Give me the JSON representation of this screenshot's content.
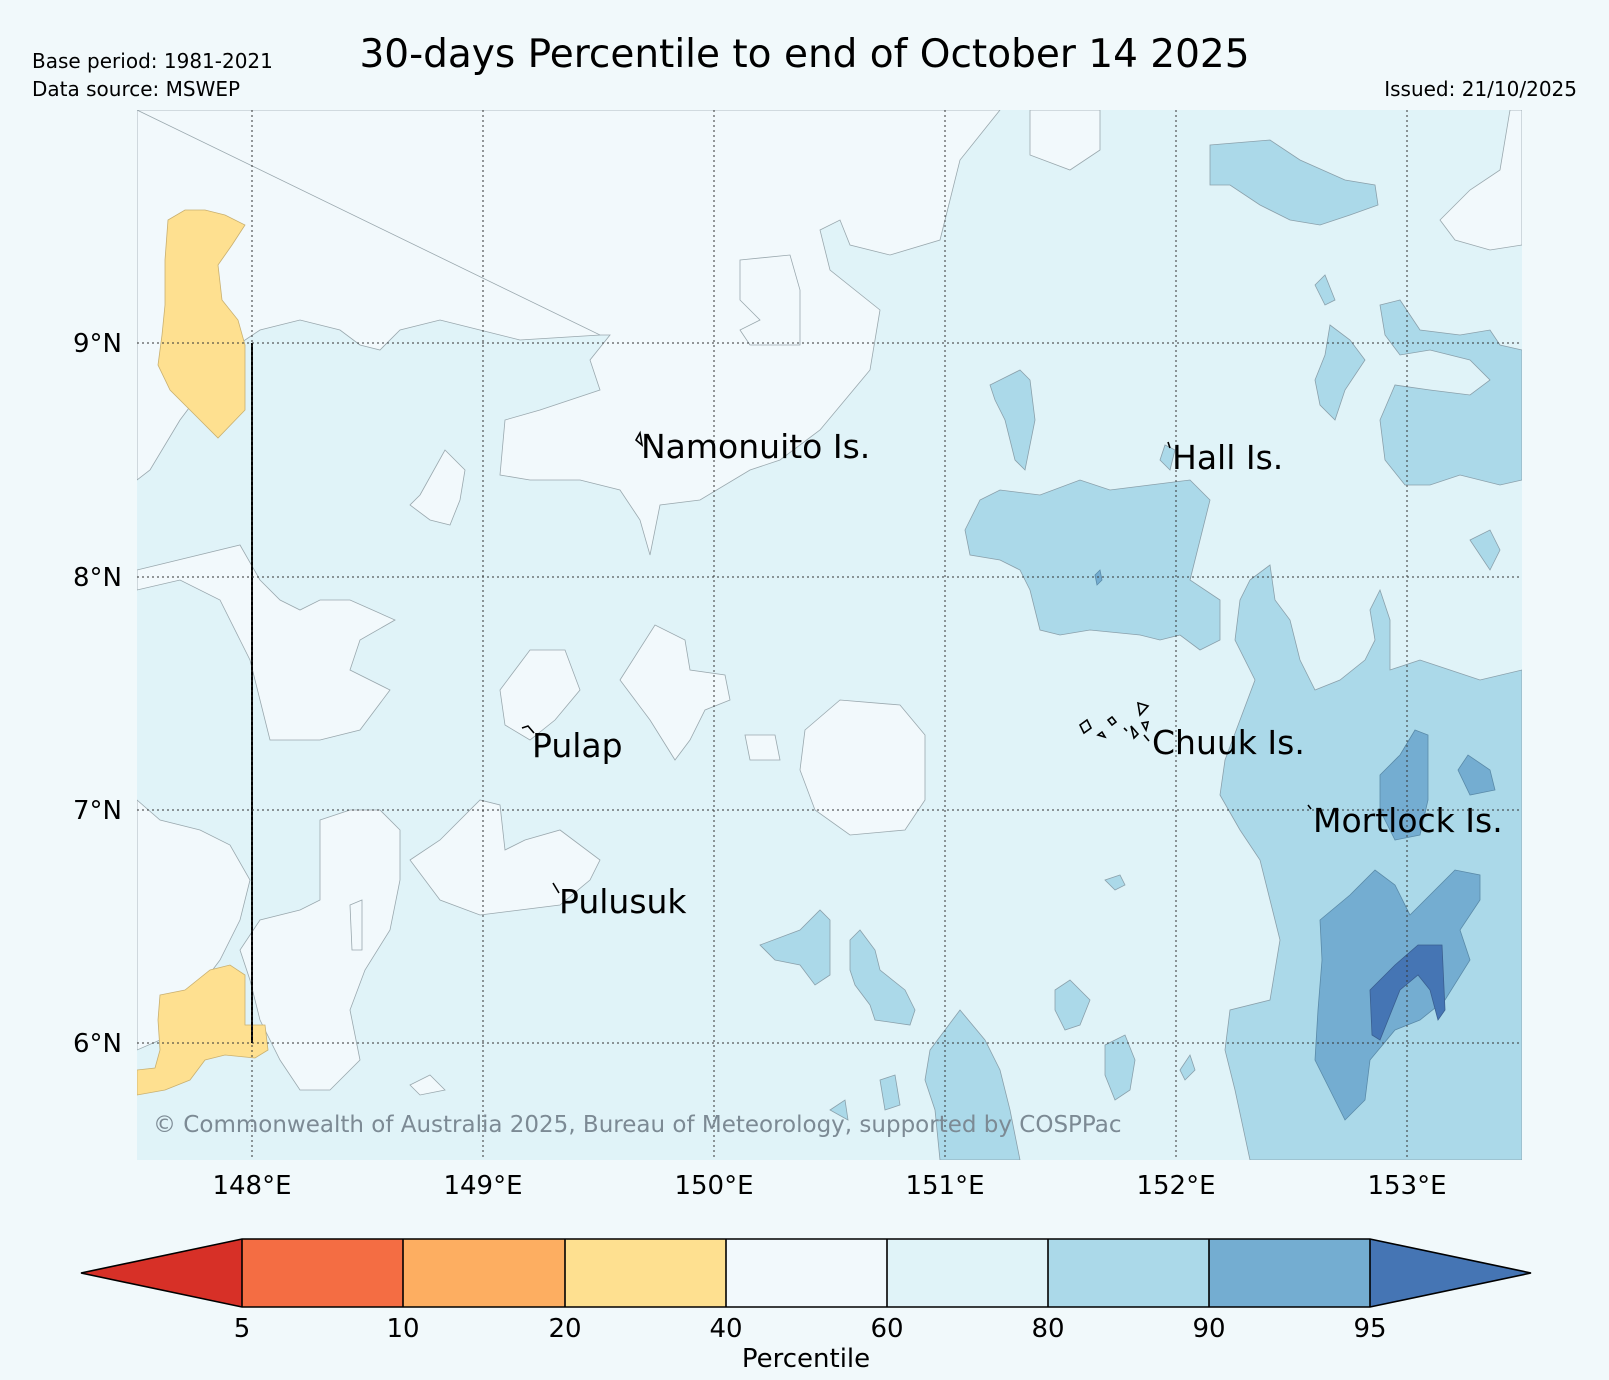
{
  "header": {
    "title": "30-days Percentile to end of October 14 2025",
    "base_period": "Base period: 1981-2021",
    "data_source": "Data source: MSWEP",
    "issued": "Issued: 21/10/2025"
  },
  "map": {
    "lat_labels": [
      "9°N",
      "8°N",
      "7°N",
      "6°N"
    ],
    "lon_labels": [
      "148°E",
      "149°E",
      "150°E",
      "151°E",
      "152°E",
      "153°E"
    ],
    "places": {
      "namonuito": "Namonuito Is.",
      "hall": "Hall Is.",
      "pulap": "Pulap",
      "chuuk": "Chuuk Is.",
      "mortlock": "Mortlock Is.",
      "pulusuk": "Pulusuk"
    },
    "copyright": "© Commonwealth of Australia 2025, Bureau of Meteorology, supported by COSPPac"
  },
  "colorbar": {
    "label": "Percentile",
    "ticks": [
      "5",
      "10",
      "20",
      "40",
      "60",
      "80",
      "90",
      "95"
    ],
    "colors": {
      "below5": "#d73027",
      "p5_10": "#f46d43",
      "p10_20": "#fdae61",
      "p20_40": "#fee090",
      "p40_60": "#f2f9fc",
      "p60_80": "#e0f3f8",
      "p80_90": "#abd9e9",
      "p90_95": "#74add1",
      "above95": "#4575b4"
    }
  }
}
